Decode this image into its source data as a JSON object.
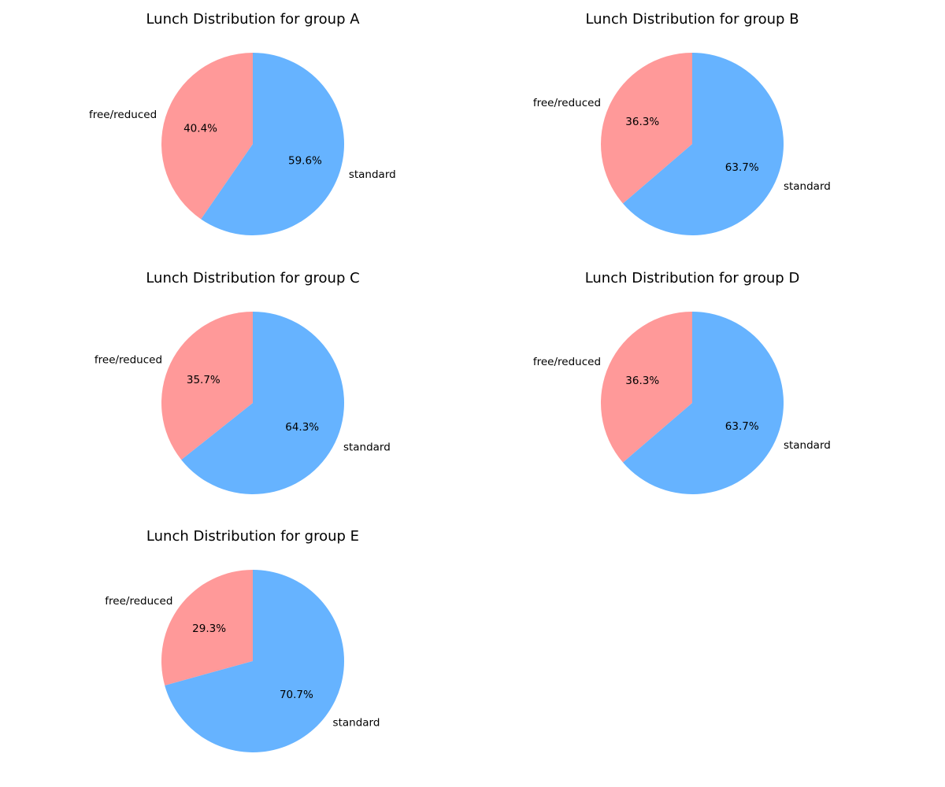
{
  "chart_data": [
    {
      "type": "pie",
      "title": "Lunch Distribution for group A",
      "categories": [
        "free/reduced",
        "standard"
      ],
      "values": [
        40.4,
        59.6
      ],
      "percent_labels": [
        "40.4%",
        "59.6%"
      ],
      "colors": [
        "#ff9999",
        "#66b3ff"
      ],
      "start_angle": "90 degrees, counterclockwise"
    },
    {
      "type": "pie",
      "title": "Lunch Distribution for group B",
      "categories": [
        "free/reduced",
        "standard"
      ],
      "values": [
        36.3,
        63.7
      ],
      "percent_labels": [
        "36.3%",
        "63.7%"
      ],
      "colors": [
        "#ff9999",
        "#66b3ff"
      ],
      "start_angle": "90 degrees, counterclockwise"
    },
    {
      "type": "pie",
      "title": "Lunch Distribution for group C",
      "categories": [
        "free/reduced",
        "standard"
      ],
      "values": [
        35.7,
        64.3
      ],
      "percent_labels": [
        "35.7%",
        "64.3%"
      ],
      "colors": [
        "#ff9999",
        "#66b3ff"
      ],
      "start_angle": "90 degrees, counterclockwise"
    },
    {
      "type": "pie",
      "title": "Lunch Distribution for group D",
      "categories": [
        "free/reduced",
        "standard"
      ],
      "values": [
        36.3,
        63.7
      ],
      "percent_labels": [
        "36.3%",
        "63.7%"
      ],
      "colors": [
        "#ff9999",
        "#66b3ff"
      ],
      "start_angle": "90 degrees, counterclockwise"
    },
    {
      "type": "pie",
      "title": "Lunch Distribution for group E",
      "categories": [
        "free/reduced",
        "standard"
      ],
      "values": [
        29.3,
        70.7
      ],
      "percent_labels": [
        "29.3%",
        "70.7%"
      ],
      "colors": [
        "#ff9999",
        "#66b3ff"
      ],
      "start_angle": "90 degrees, counterclockwise"
    }
  ]
}
